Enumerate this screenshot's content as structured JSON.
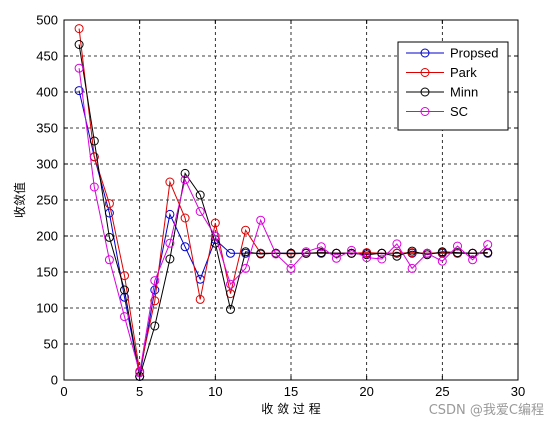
{
  "chart_data": {
    "type": "line",
    "title": "",
    "xlabel": "收 敛 过 程",
    "ylabel": "收敛值",
    "xlim": [
      0,
      30
    ],
    "ylim": [
      0,
      500
    ],
    "xticks": [
      "0",
      "5",
      "10",
      "15",
      "20",
      "25",
      "30"
    ],
    "yticks": [
      "0",
      "50",
      "100",
      "150",
      "200",
      "250",
      "300",
      "350",
      "400",
      "450",
      "500"
    ],
    "grid": true,
    "grid_style": "dashed",
    "legend_position": "top-right",
    "marker": "circle",
    "series": [
      {
        "name": "Propsed",
        "color": "#0000cc",
        "x": [
          1,
          2,
          3,
          4,
          5,
          6,
          7,
          8,
          9,
          10,
          11,
          12,
          13,
          14,
          15,
          16,
          17,
          18,
          19,
          20,
          21,
          22,
          23,
          24,
          25,
          26,
          27,
          28
        ],
        "values": [
          402,
          310,
          232,
          115,
          5,
          125,
          230,
          185,
          140,
          195,
          176,
          176,
          176,
          176,
          176,
          176,
          176,
          176,
          176,
          176,
          176,
          176,
          176,
          176,
          176,
          176,
          176,
          176
        ]
      },
      {
        "name": "Park",
        "color": "#dd0000",
        "x": [
          1,
          2,
          3,
          4,
          5,
          6,
          7,
          8,
          9,
          10,
          11,
          12,
          13,
          14,
          15,
          16,
          17,
          18,
          19,
          20,
          21,
          22,
          23,
          24,
          25,
          26,
          27,
          28
        ],
        "values": [
          488,
          310,
          245,
          145,
          12,
          110,
          275,
          225,
          112,
          218,
          120,
          208,
          176,
          176,
          175,
          176,
          177,
          176,
          176,
          177,
          176,
          176,
          177,
          176,
          177,
          176,
          176,
          177
        ]
      },
      {
        "name": "Minn",
        "color": "#000000",
        "x": [
          1,
          2,
          3,
          4,
          5,
          6,
          7,
          8,
          9,
          10,
          11,
          12,
          13,
          14,
          15,
          16,
          17,
          18,
          19,
          20,
          21,
          22,
          23,
          24,
          25,
          26,
          27,
          28
        ],
        "values": [
          466,
          332,
          198,
          125,
          5,
          75,
          168,
          287,
          257,
          190,
          98,
          178,
          175,
          176,
          176,
          176,
          177,
          176,
          176,
          174,
          176,
          172,
          179,
          174,
          178,
          177,
          176,
          177
        ]
      },
      {
        "name": "SC",
        "color": "#dd00dd",
        "x": [
          1,
          2,
          3,
          4,
          5,
          6,
          7,
          8,
          9,
          10,
          11,
          12,
          13,
          14,
          15,
          16,
          17,
          18,
          19,
          20,
          21,
          22,
          23,
          24,
          25,
          26,
          27,
          28
        ],
        "values": [
          433,
          268,
          167,
          88,
          10,
          138,
          190,
          278,
          234,
          200,
          133,
          155,
          222,
          175,
          155,
          178,
          185,
          169,
          180,
          170,
          168,
          189,
          155,
          176,
          165,
          186,
          167,
          188
        ]
      }
    ]
  },
  "watermark": "CSDN @我爱C编程"
}
